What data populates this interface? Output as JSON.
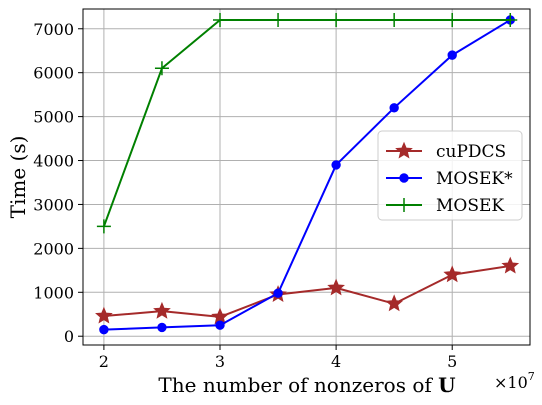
{
  "chart_data": {
    "type": "line",
    "xlabel_text": "The number of nonzeros of ",
    "xlabel_bold": "U",
    "ylabel": "Time (s)",
    "x_multiplier_base": "×10",
    "x_multiplier_exp": "7",
    "xlim": [
      1.82,
      5.67
    ],
    "ylim": [
      -200,
      7450
    ],
    "xticks": [
      2,
      3,
      4,
      5
    ],
    "yticks": [
      0,
      1000,
      2000,
      3000,
      4000,
      5000,
      6000,
      7000
    ],
    "grid": true,
    "legend_position": "center-right",
    "series": [
      {
        "name": "cuPDCS",
        "color": "#a52a2a",
        "marker": "star",
        "x": [
          2,
          2.5,
          3,
          3.5,
          4,
          4.5,
          5,
          5.5
        ],
        "y": [
          460,
          570,
          440,
          950,
          1100,
          740,
          1400,
          1600
        ]
      },
      {
        "name": "MOSEK*",
        "color": "#0000ff",
        "marker": "circle",
        "x": [
          2,
          2.5,
          3,
          3.5,
          4,
          4.5,
          5,
          5.5
        ],
        "y": [
          150,
          200,
          250,
          980,
          3900,
          5200,
          6400,
          7200
        ]
      },
      {
        "name": "MOSEK",
        "color": "#008000",
        "marker": "plus",
        "x": [
          2,
          2.5,
          3,
          3.5,
          4,
          4.5,
          5,
          5.5
        ],
        "y": [
          2500,
          6100,
          7200,
          7200,
          7200,
          7200,
          7200,
          7200
        ]
      }
    ]
  }
}
